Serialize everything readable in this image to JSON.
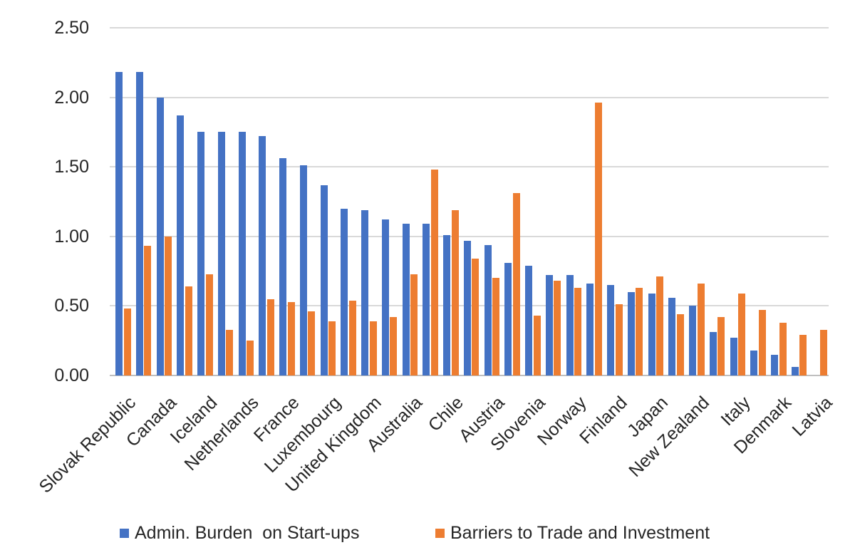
{
  "chart_data": {
    "type": "bar",
    "title": "",
    "xlabel": "",
    "ylabel": "",
    "ylim": [
      0,
      2.5
    ],
    "y_ticks": [
      "2.50",
      "2.00",
      "1.50",
      "1.00",
      "0.50",
      "0.00"
    ],
    "grid": true,
    "legend_position": "bottom",
    "note": "Grouped bar chart; only every second category carries an axis label in the image",
    "categories": [
      "Slovak Republic",
      "",
      "Canada",
      "",
      "Iceland",
      "",
      "Netherlands",
      "",
      "France",
      "",
      "Luxembourg",
      "",
      "United Kingdom",
      "",
      "Australia",
      "",
      "Chile",
      "",
      "Austria",
      "",
      "Slovenia",
      "",
      "Norway",
      "",
      "Finland",
      "",
      "Japan",
      "",
      "New Zealand",
      "",
      "Italy",
      "",
      "Denmark",
      "",
      "Latvia"
    ],
    "series": [
      {
        "name": "Admin. Burden  on Start-ups",
        "color": "#4472C4",
        "values": [
          2.18,
          2.18,
          2.0,
          1.87,
          1.75,
          1.75,
          1.75,
          1.72,
          1.56,
          1.51,
          1.37,
          1.2,
          1.19,
          1.12,
          1.09,
          1.09,
          1.01,
          0.97,
          0.94,
          0.81,
          0.79,
          0.72,
          0.72,
          0.66,
          0.65,
          0.6,
          0.59,
          0.56,
          0.5,
          0.31,
          0.27,
          0.18,
          0.15,
          0.06,
          0.0
        ]
      },
      {
        "name": "Barriers to Trade and Investment",
        "color": "#ED7D31",
        "values": [
          0.48,
          0.93,
          1.0,
          0.64,
          0.73,
          0.33,
          0.25,
          0.55,
          0.53,
          0.46,
          0.39,
          0.54,
          0.39,
          0.42,
          0.73,
          1.48,
          1.19,
          0.84,
          0.7,
          1.31,
          0.43,
          0.68,
          0.63,
          1.96,
          0.51,
          0.63,
          0.71,
          0.44,
          0.66,
          0.42,
          0.59,
          0.47,
          0.38,
          0.29,
          0.33
        ]
      }
    ],
    "colors": {
      "gridline": "#d9d9d9",
      "axis_line": "#bfbfbf",
      "text": "#262626",
      "background": "#ffffff"
    }
  }
}
